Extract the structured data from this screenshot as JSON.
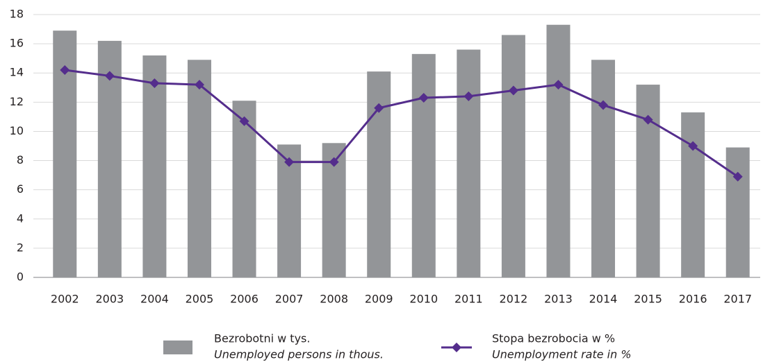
{
  "chart_data": {
    "type": "combo",
    "categories": [
      "2002",
      "2003",
      "2004",
      "2005",
      "2006",
      "2007",
      "2008",
      "2009",
      "2010",
      "2011",
      "2012",
      "2013",
      "2014",
      "2015",
      "2016",
      "2017"
    ],
    "series": [
      {
        "name": "Bezrobotni w tys.",
        "name_en": "Unemployed persons in thous.",
        "type": "bar",
        "color": "#939598",
        "values": [
          16.9,
          16.2,
          15.2,
          14.9,
          12.1,
          9.1,
          9.2,
          14.1,
          15.3,
          15.6,
          16.6,
          17.3,
          14.9,
          13.2,
          11.3,
          8.9
        ]
      },
      {
        "name": "Stopa bezrobocia w %",
        "name_en": "Unemployment rate in %",
        "type": "line",
        "color": "#542d8c",
        "values": [
          14.2,
          13.8,
          13.3,
          13.2,
          10.7,
          7.9,
          7.9,
          11.6,
          12.3,
          12.4,
          12.8,
          13.2,
          11.8,
          10.8,
          9.0,
          6.9
        ]
      }
    ],
    "ylim": [
      0,
      18
    ],
    "yticks": [
      0,
      2,
      4,
      6,
      8,
      10,
      12,
      14,
      16,
      18
    ],
    "grid": true
  }
}
